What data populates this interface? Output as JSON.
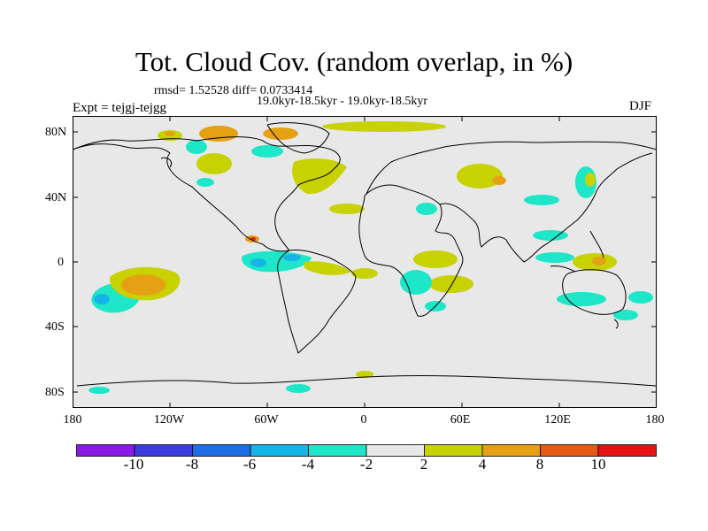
{
  "title": "Tot. Cloud Cov. (random overlap, in %)",
  "stats": "rmsd= 1.52528 diff= 0.0733414",
  "period": "19.0kyr-18.5kyr - 19.0kyr-18.5kyr",
  "experiment": "Expt = tejgj-tejgg",
  "season": "DJF",
  "map": {
    "background_color": "#e8e8e8",
    "coastline_color": "#000000",
    "lat_ticks": [
      "80N",
      "40N",
      "0",
      "40S",
      "80S"
    ],
    "lon_ticks": [
      "180",
      "120W",
      "60W",
      "0",
      "60E",
      "120E",
      "180"
    ]
  },
  "colorbar": {
    "labels": [
      "-10",
      "-8",
      "-6",
      "-4",
      "-2",
      "2",
      "4",
      "8",
      "10"
    ],
    "colors": [
      "#8a1ae6",
      "#3c3cde",
      "#1e6fe6",
      "#14b4e6",
      "#1ee6c8",
      "#e8e8e8",
      "#c8d200",
      "#e6a014",
      "#e65a14",
      "#e61414"
    ]
  }
}
